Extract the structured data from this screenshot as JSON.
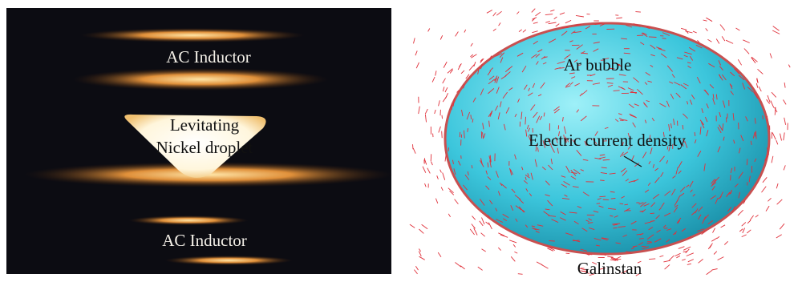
{
  "left_panel": {
    "labels": [
      "AC Inductor",
      "Levitating",
      "Nickel droplet",
      "AC Inductor"
    ]
  },
  "right_panel": {
    "labels": [
      "Ar bubble",
      "Electric current density",
      "Galinstan"
    ]
  }
}
